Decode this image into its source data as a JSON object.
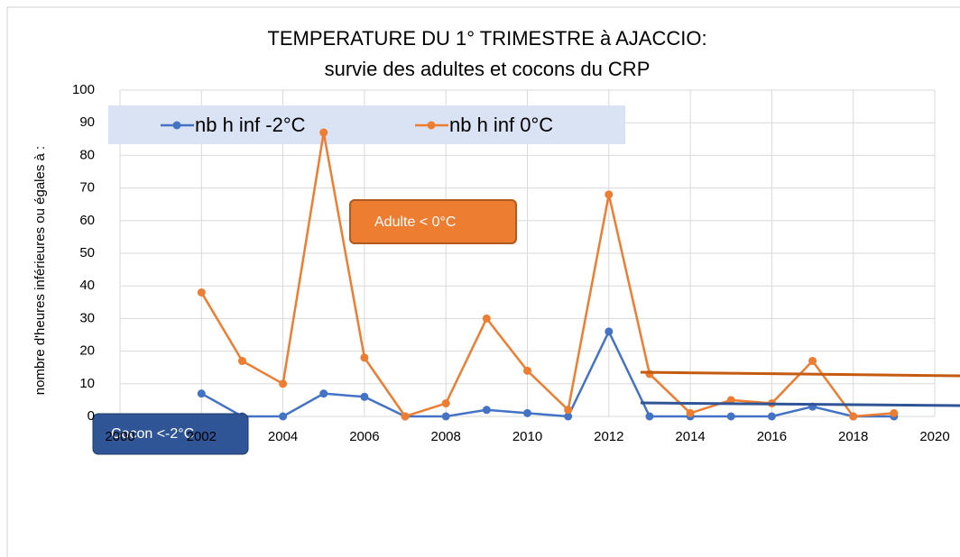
{
  "chart_data": {
    "type": "line",
    "title": "TEMPERATURE DU 1° TRIMESTRE à AJACCIO:",
    "subtitle": "survie des adultes et cocons du CRP",
    "y_label": "nombre d'heures inférieures ou égales à :",
    "x": [
      2002,
      2003,
      2004,
      2005,
      2006,
      2007,
      2008,
      2009,
      2010,
      2011,
      2012,
      2013,
      2014,
      2015,
      2016,
      2017,
      2018,
      2019
    ],
    "series": [
      {
        "name": "nb h inf -2°C",
        "color": "#4472c4",
        "values": [
          7,
          0,
          0,
          7,
          6,
          0,
          0,
          2,
          1,
          0,
          26,
          0,
          0,
          0,
          0,
          3,
          0,
          0
        ]
      },
      {
        "name": "nb h inf 0°C",
        "color": "#ed7d31",
        "values": [
          38,
          17,
          10,
          87,
          18,
          0,
          4,
          30,
          14,
          2,
          68,
          13,
          1,
          5,
          4,
          17,
          0,
          1
        ]
      }
    ],
    "xlim": [
      2000,
      2020
    ],
    "xticks": [
      2000,
      2002,
      2004,
      2006,
      2008,
      2010,
      2012,
      2014,
      2016,
      2018,
      2020
    ],
    "ylim": [
      0,
      100
    ],
    "yticks": [
      0,
      10,
      20,
      30,
      40,
      50,
      60,
      70,
      80,
      90,
      100
    ],
    "grid": true,
    "legend": "top-left",
    "annotations": [
      "Adulte < 0°C",
      "Cocon <-2°C"
    ]
  }
}
